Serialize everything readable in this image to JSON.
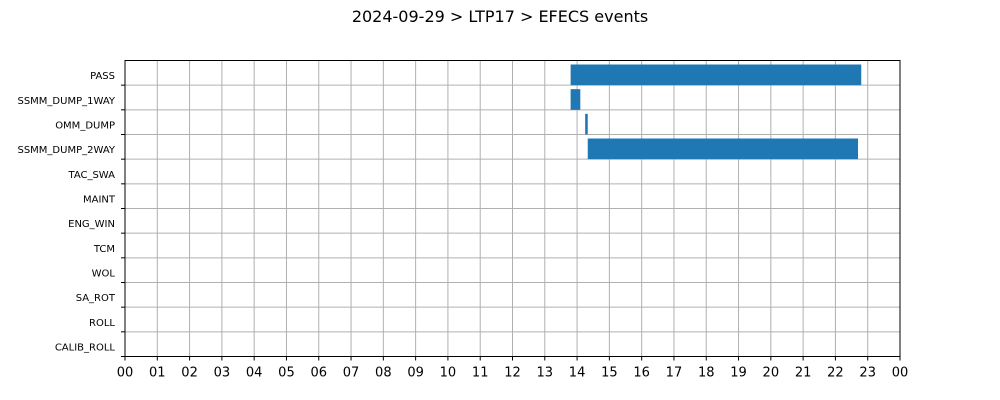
{
  "chart_data": {
    "type": "gantt",
    "title": "2024-09-29 > LTP17 > EFECS events",
    "categories": [
      "PASS",
      "SSMM_DUMP_1WAY",
      "OMM_DUMP",
      "SSMM_DUMP_2WAY",
      "TAC_SWA",
      "MAINT",
      "ENG_WIN",
      "TCM",
      "WOL",
      "SA_ROT",
      "ROLL",
      "CALIB_ROLL"
    ],
    "x_ticks": [
      "00",
      "01",
      "02",
      "03",
      "04",
      "05",
      "06",
      "07",
      "08",
      "09",
      "10",
      "11",
      "12",
      "13",
      "14",
      "15",
      "16",
      "17",
      "18",
      "19",
      "20",
      "21",
      "22",
      "23",
      "00"
    ],
    "xlim": [
      0,
      24
    ],
    "x_unit": "hour",
    "grid": true,
    "bar_color": "#1f77b4",
    "events": [
      {
        "category": "PASS",
        "start": 13.8,
        "end": 22.8
      },
      {
        "category": "SSMM_DUMP_1WAY",
        "start": 13.8,
        "end": 14.1
      },
      {
        "category": "OMM_DUMP",
        "start": 14.25,
        "end": 14.33
      },
      {
        "category": "SSMM_DUMP_2WAY",
        "start": 14.33,
        "end": 22.7
      }
    ]
  }
}
